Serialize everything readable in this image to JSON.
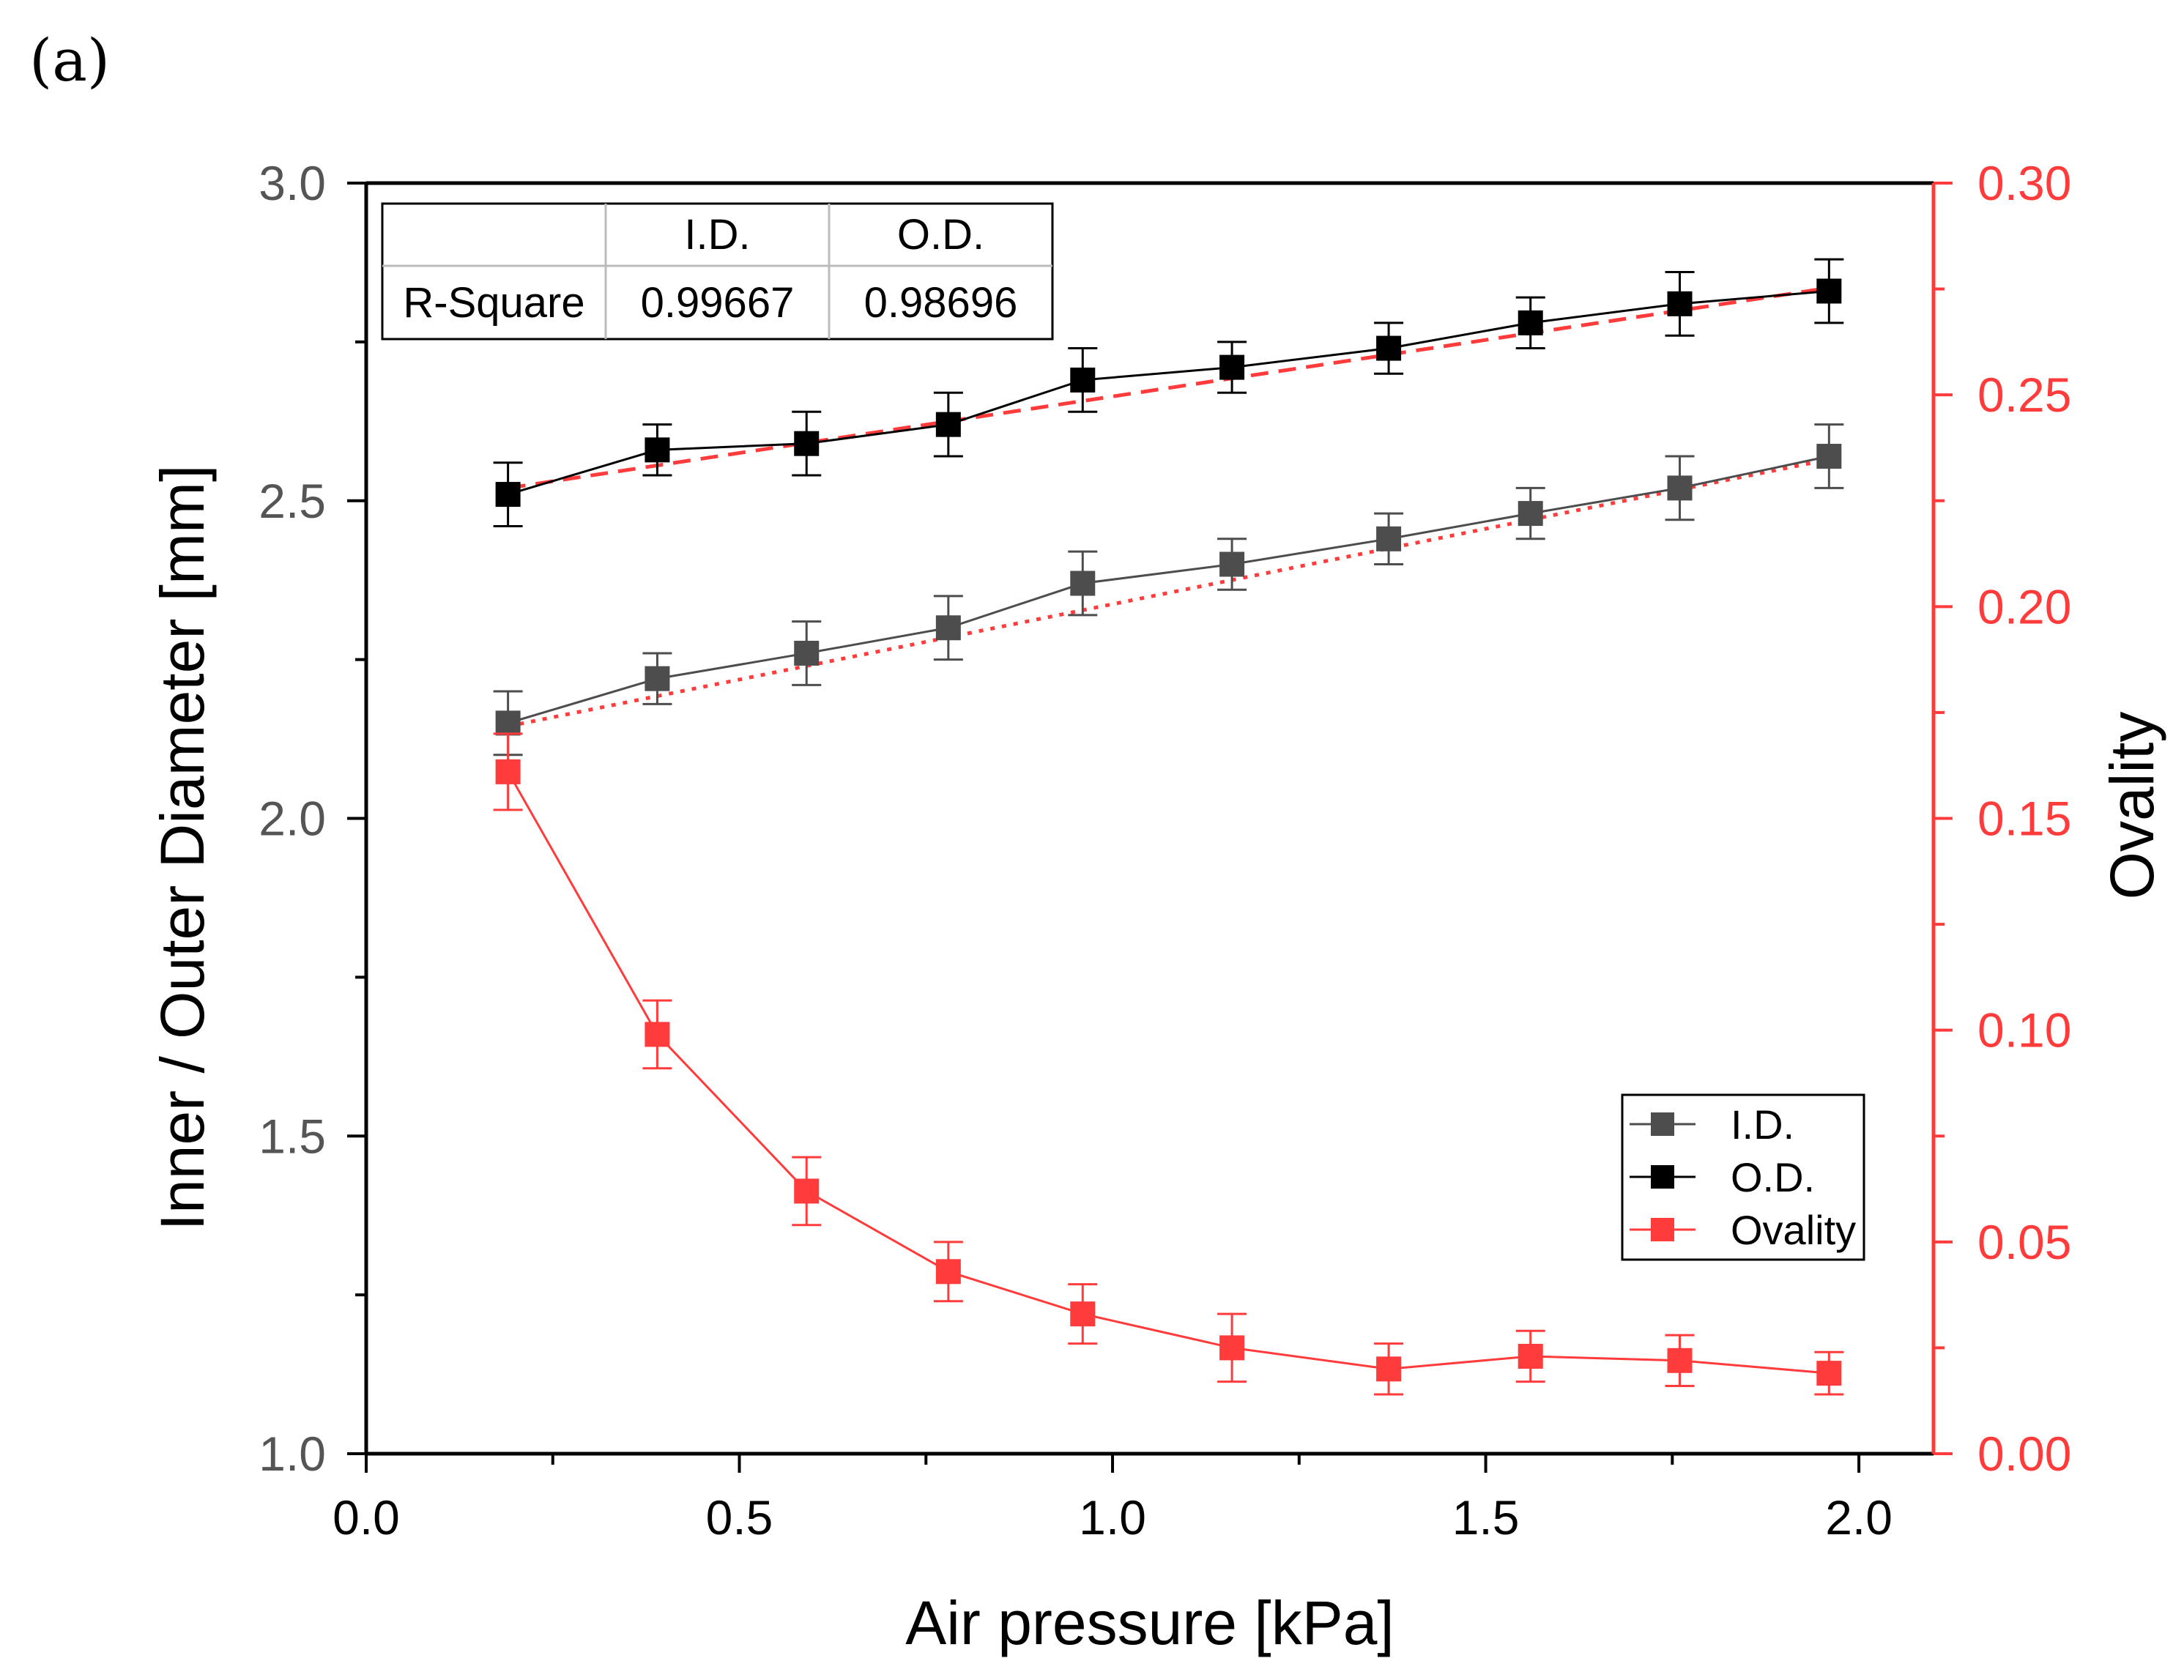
{
  "panel_label": "(a)",
  "chart_data": {
    "type": "line",
    "xlabel": "Air pressure [kPa]",
    "ylabel": "Inner / Outer Diameter [mm]",
    "y2label": "Ovality",
    "xlim": [
      0.0,
      2.1
    ],
    "ylim": [
      1.0,
      3.0
    ],
    "y2lim": [
      0.0,
      0.3
    ],
    "x_ticks": [
      "0.0",
      "0.5",
      "1.0",
      "1.5",
      "2.0"
    ],
    "y_ticks": [
      "1.0",
      "1.5",
      "2.0",
      "2.5",
      "3.0"
    ],
    "y2_ticks": [
      "0.00",
      "0.05",
      "0.10",
      "0.15",
      "0.20",
      "0.25",
      "0.30"
    ],
    "accent_color": "#ff3b3b",
    "series": [
      {
        "name": "I.D.",
        "axis": "left",
        "color": "#4d4d4d",
        "x": [
          0.19,
          0.39,
          0.59,
          0.78,
          0.96,
          1.16,
          1.37,
          1.56,
          1.76,
          1.96
        ],
        "values": [
          2.15,
          2.22,
          2.26,
          2.3,
          2.37,
          2.4,
          2.44,
          2.48,
          2.52,
          2.57
        ],
        "errors": [
          0.05,
          0.04,
          0.05,
          0.05,
          0.05,
          0.04,
          0.04,
          0.04,
          0.05,
          0.05
        ],
        "fit": {
          "style": "dotted",
          "color": "#ff3b3b",
          "x": [
            0.19,
            1.96
          ],
          "values": [
            2.145,
            2.565
          ]
        }
      },
      {
        "name": "O.D.",
        "axis": "left",
        "color": "#000000",
        "x": [
          0.19,
          0.39,
          0.59,
          0.78,
          0.96,
          1.16,
          1.37,
          1.56,
          1.76,
          1.96
        ],
        "values": [
          2.51,
          2.58,
          2.59,
          2.62,
          2.69,
          2.71,
          2.74,
          2.78,
          2.81,
          2.83
        ],
        "errors": [
          0.05,
          0.04,
          0.05,
          0.05,
          0.05,
          0.04,
          0.04,
          0.04,
          0.05,
          0.05
        ],
        "fit": {
          "style": "dashed",
          "color": "#ff3b3b",
          "x": [
            0.19,
            1.96
          ],
          "values": [
            2.52,
            2.835
          ]
        }
      },
      {
        "name": "Ovality",
        "axis": "right",
        "color": "#ff3b3b",
        "x": [
          0.19,
          0.39,
          0.59,
          0.78,
          0.96,
          1.16,
          1.37,
          1.56,
          1.76,
          1.96
        ],
        "values": [
          0.161,
          0.099,
          0.062,
          0.043,
          0.033,
          0.025,
          0.02,
          0.023,
          0.022,
          0.019
        ],
        "errors": [
          0.009,
          0.008,
          0.008,
          0.007,
          0.007,
          0.008,
          0.006,
          0.006,
          0.006,
          0.005
        ]
      }
    ],
    "legend": {
      "position": "bottom-right",
      "entries": [
        "I.D.",
        "O.D.",
        "Ovality"
      ]
    },
    "table": {
      "position": "top-left",
      "headers": [
        "",
        "I.D.",
        "O.D."
      ],
      "rows": [
        [
          "R-Square",
          "0.99667",
          "0.98696"
        ]
      ]
    }
  }
}
